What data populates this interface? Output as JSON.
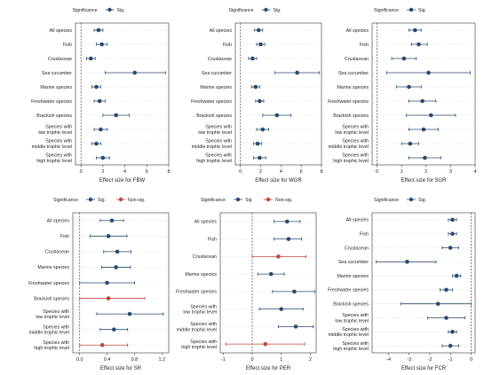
{
  "colors": {
    "sig": "#2b4a6f",
    "nonsig": "#c0463a",
    "grid": "#c8c8c8",
    "zero": "#444444",
    "axis": "#333333"
  },
  "chart_data": [
    {
      "type": "forest",
      "legend_title": "Significance",
      "legend": [
        "Sig."
      ],
      "categories": [
        "All species",
        "Fish",
        "Crustacean",
        "Sea cucumber",
        "Marine species",
        "Freshwater species",
        "Brackish species",
        "Species with\nlow trophic level",
        "Species with\nmiddle trophic level",
        "Species with\nhigh trophic level"
      ],
      "estimates": [
        1.6,
        1.9,
        0.9,
        4.9,
        1.4,
        1.7,
        3.2,
        1.8,
        1.4,
        2.0
      ],
      "ci_low": [
        1.2,
        1.4,
        0.5,
        2.2,
        1.0,
        1.2,
        2.0,
        1.2,
        1.0,
        1.4
      ],
      "ci_high": [
        2.0,
        2.4,
        1.3,
        7.7,
        1.8,
        2.2,
        4.4,
        2.4,
        1.8,
        2.6
      ],
      "sig": [
        1,
        1,
        1,
        1,
        1,
        1,
        1,
        1,
        1,
        1
      ],
      "xlabel": "Effect size for FBW",
      "xlim": [
        -0.5,
        8.0
      ],
      "xticks": [
        "0",
        "2",
        "4",
        "6",
        "8"
      ]
    },
    {
      "type": "forest",
      "legend_title": "Significance",
      "legend": [
        "Sig."
      ],
      "categories": [
        "All species",
        "Fish",
        "Crustacean",
        "Sea cucumber",
        "Marine species",
        "Freshwater species",
        "Brackish species",
        "Species with\nlow trophic level",
        "Species with\nmiddle trophic level",
        "Species with\nhigh trophic level"
      ],
      "estimates": [
        1.8,
        2.0,
        1.2,
        5.6,
        1.5,
        1.9,
        3.6,
        2.2,
        1.7,
        1.9
      ],
      "ci_low": [
        1.4,
        1.6,
        0.8,
        3.4,
        1.1,
        1.5,
        2.2,
        1.6,
        1.3,
        1.3
      ],
      "ci_high": [
        2.2,
        2.4,
        1.6,
        7.8,
        1.9,
        2.3,
        5.0,
        2.8,
        2.1,
        2.5
      ],
      "sig": [
        1,
        1,
        1,
        1,
        1,
        1,
        1,
        1,
        1,
        1
      ],
      "xlabel": "Effect size for WGR",
      "xlim": [
        -0.5,
        8.0
      ],
      "xticks": [
        "0",
        "2",
        "4",
        "6",
        "8"
      ]
    },
    {
      "type": "forest",
      "legend_title": "Significance",
      "legend": [
        "Sig."
      ],
      "categories": [
        "All species",
        "Fish",
        "Crustacean",
        "Sea cucumber",
        "Marine species",
        "Freshwater species",
        "Brackish species",
        "Species with\nlow trophic level",
        "Species with\nmiddle trophic level",
        "Species with\nhigh trophic level"
      ],
      "estimates": [
        1.55,
        1.7,
        1.1,
        2.1,
        1.3,
        1.85,
        2.2,
        1.9,
        1.35,
        1.95
      ],
      "ci_low": [
        1.3,
        1.4,
        0.6,
        0.4,
        0.8,
        1.3,
        1.2,
        1.3,
        1.0,
        1.3
      ],
      "ci_high": [
        1.8,
        2.05,
        1.6,
        3.8,
        1.8,
        2.4,
        3.2,
        2.5,
        1.7,
        2.6
      ],
      "sig": [
        1,
        1,
        1,
        1,
        1,
        1,
        1,
        1,
        1,
        1
      ],
      "xlabel": "Effect size for SGR",
      "xlim": [
        -0.2,
        4.0
      ],
      "xticks": [
        "0",
        "1",
        "2",
        "3",
        "4"
      ]
    },
    {
      "type": "forest",
      "legend_title": "Significance",
      "legend": [
        "Sig.",
        "Non-sig."
      ],
      "categories": [
        "All species",
        "Fish",
        "Crustacean",
        "Marine species",
        "Freshwater species",
        "Brackish species",
        "Species with\nlow trophic level",
        "Species with\nmiddle trophic level",
        "Species with\nhigh trophic level"
      ],
      "estimates": [
        0.47,
        0.42,
        0.55,
        0.53,
        0.4,
        0.42,
        0.73,
        0.5,
        0.33
      ],
      "ci_low": [
        0.3,
        0.15,
        0.35,
        0.32,
        0.0,
        0.0,
        0.25,
        0.3,
        0.0
      ],
      "ci_high": [
        0.64,
        0.69,
        0.75,
        0.74,
        0.8,
        0.95,
        1.22,
        0.7,
        0.7
      ],
      "sig": [
        1,
        1,
        1,
        1,
        1,
        0,
        1,
        1,
        0
      ],
      "xlabel": "Effect size for SR",
      "xlim": [
        -0.1,
        1.3
      ],
      "xticks": [
        "0.0",
        "0.4",
        "0.8",
        "1.2"
      ]
    },
    {
      "type": "forest",
      "legend_title": "Significance",
      "legend": [
        "Sig",
        "Non-sig."
      ],
      "categories": [
        "All species",
        "Fish",
        "Crustacean",
        "Marine species",
        "Freshwater species",
        "Species with\nlow trophic level",
        "Species with\nmiddle trophic level",
        "Species with\nhigh trophic level"
      ],
      "estimates": [
        1.2,
        1.25,
        0.9,
        0.65,
        1.45,
        1.0,
        1.5,
        0.45
      ],
      "ci_low": [
        0.75,
        0.75,
        0.0,
        0.2,
        0.7,
        0.25,
        0.9,
        -0.9
      ],
      "ci_high": [
        1.65,
        1.7,
        1.85,
        1.1,
        2.15,
        1.75,
        2.1,
        1.8
      ],
      "sig": [
        1,
        1,
        0,
        1,
        1,
        1,
        1,
        0
      ],
      "xlabel": "Effect size for PER",
      "xlim": [
        -1.1,
        2.2
      ],
      "xticks": [
        "-1",
        "0",
        "1",
        "2"
      ]
    },
    {
      "type": "forest",
      "legend_title": "Significance",
      "legend": [
        "Sig."
      ],
      "categories": [
        "All species",
        "Fish",
        "Crustacean",
        "Sea cucumber",
        "Marine species",
        "Freshwater species",
        "Brackish species",
        "Species with\nlow trophic level",
        "Species with\nmiddle trophic level",
        "Species with\nhigh trophic level"
      ],
      "estimates": [
        -0.9,
        -0.9,
        -1.0,
        -3.1,
        -0.7,
        -1.2,
        -1.6,
        -1.2,
        -0.9,
        -1.0
      ],
      "ci_low": [
        -1.1,
        -1.1,
        -1.4,
        -4.6,
        -0.9,
        -1.5,
        -3.4,
        -2.1,
        -1.1,
        -1.4
      ],
      "ci_high": [
        -0.7,
        -0.7,
        -0.6,
        -1.7,
        -0.5,
        -0.9,
        0.0,
        -0.3,
        -0.7,
        -0.6
      ],
      "sig": [
        1,
        1,
        1,
        1,
        1,
        1,
        1,
        1,
        1,
        1
      ],
      "xlabel": "Effect size for FCR",
      "xlim": [
        -4.8,
        0.2
      ],
      "xticks": [
        "-4",
        "-3",
        "-2",
        "-1",
        "0"
      ]
    }
  ]
}
